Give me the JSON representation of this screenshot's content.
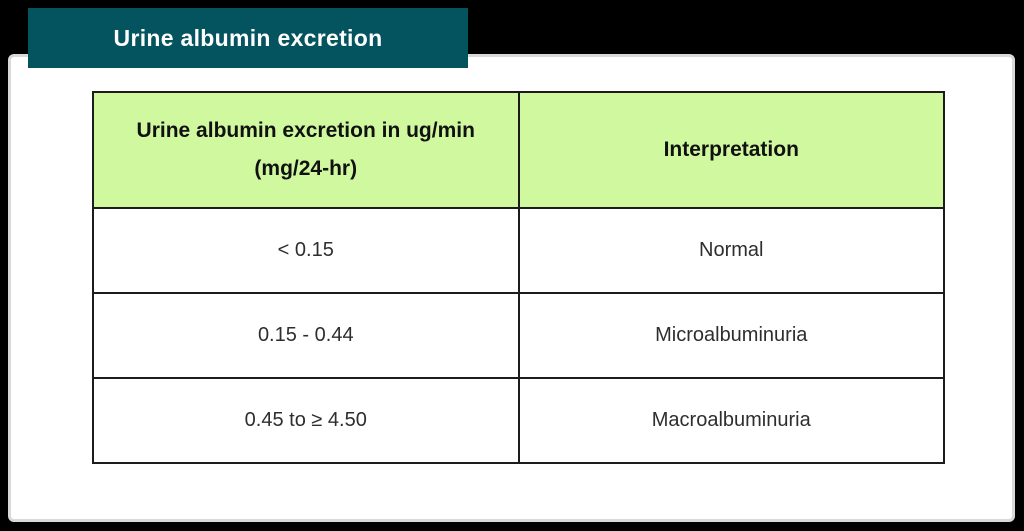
{
  "banner": {
    "title": "Urine albumin excretion"
  },
  "table": {
    "headers": [
      {
        "label": "Urine albumin excretion in ug/min (mg/24-hr)"
      },
      {
        "label": "Interpretation"
      }
    ],
    "rows": [
      {
        "range": "< 0.15",
        "interpretation": "Normal"
      },
      {
        "range": "0.15 - 0.44",
        "interpretation": "Microalbuminuria"
      },
      {
        "range": "0.45 to ≥ 4.50",
        "interpretation": "Macroalbuminuria"
      }
    ]
  },
  "colors": {
    "page_background": "#000000",
    "card_background": "#ffffff",
    "card_border": "#d9d9d9",
    "banner_background": "#04545f",
    "banner_text": "#ffffff",
    "header_background": "#d0f99f",
    "table_border": "#1c1c1c",
    "cell_text": "#2e2e2e"
  },
  "chart_data": {
    "type": "table",
    "title": "Urine albumin excretion",
    "columns": [
      "Urine albumin excretion in ug/min (mg/24-hr)",
      "Interpretation"
    ],
    "rows": [
      [
        "< 0.15",
        "Normal"
      ],
      [
        "0.15 - 0.44",
        "Microalbuminuria"
      ],
      [
        "0.45 to ≥ 4.50",
        "Macroalbuminuria"
      ]
    ]
  }
}
